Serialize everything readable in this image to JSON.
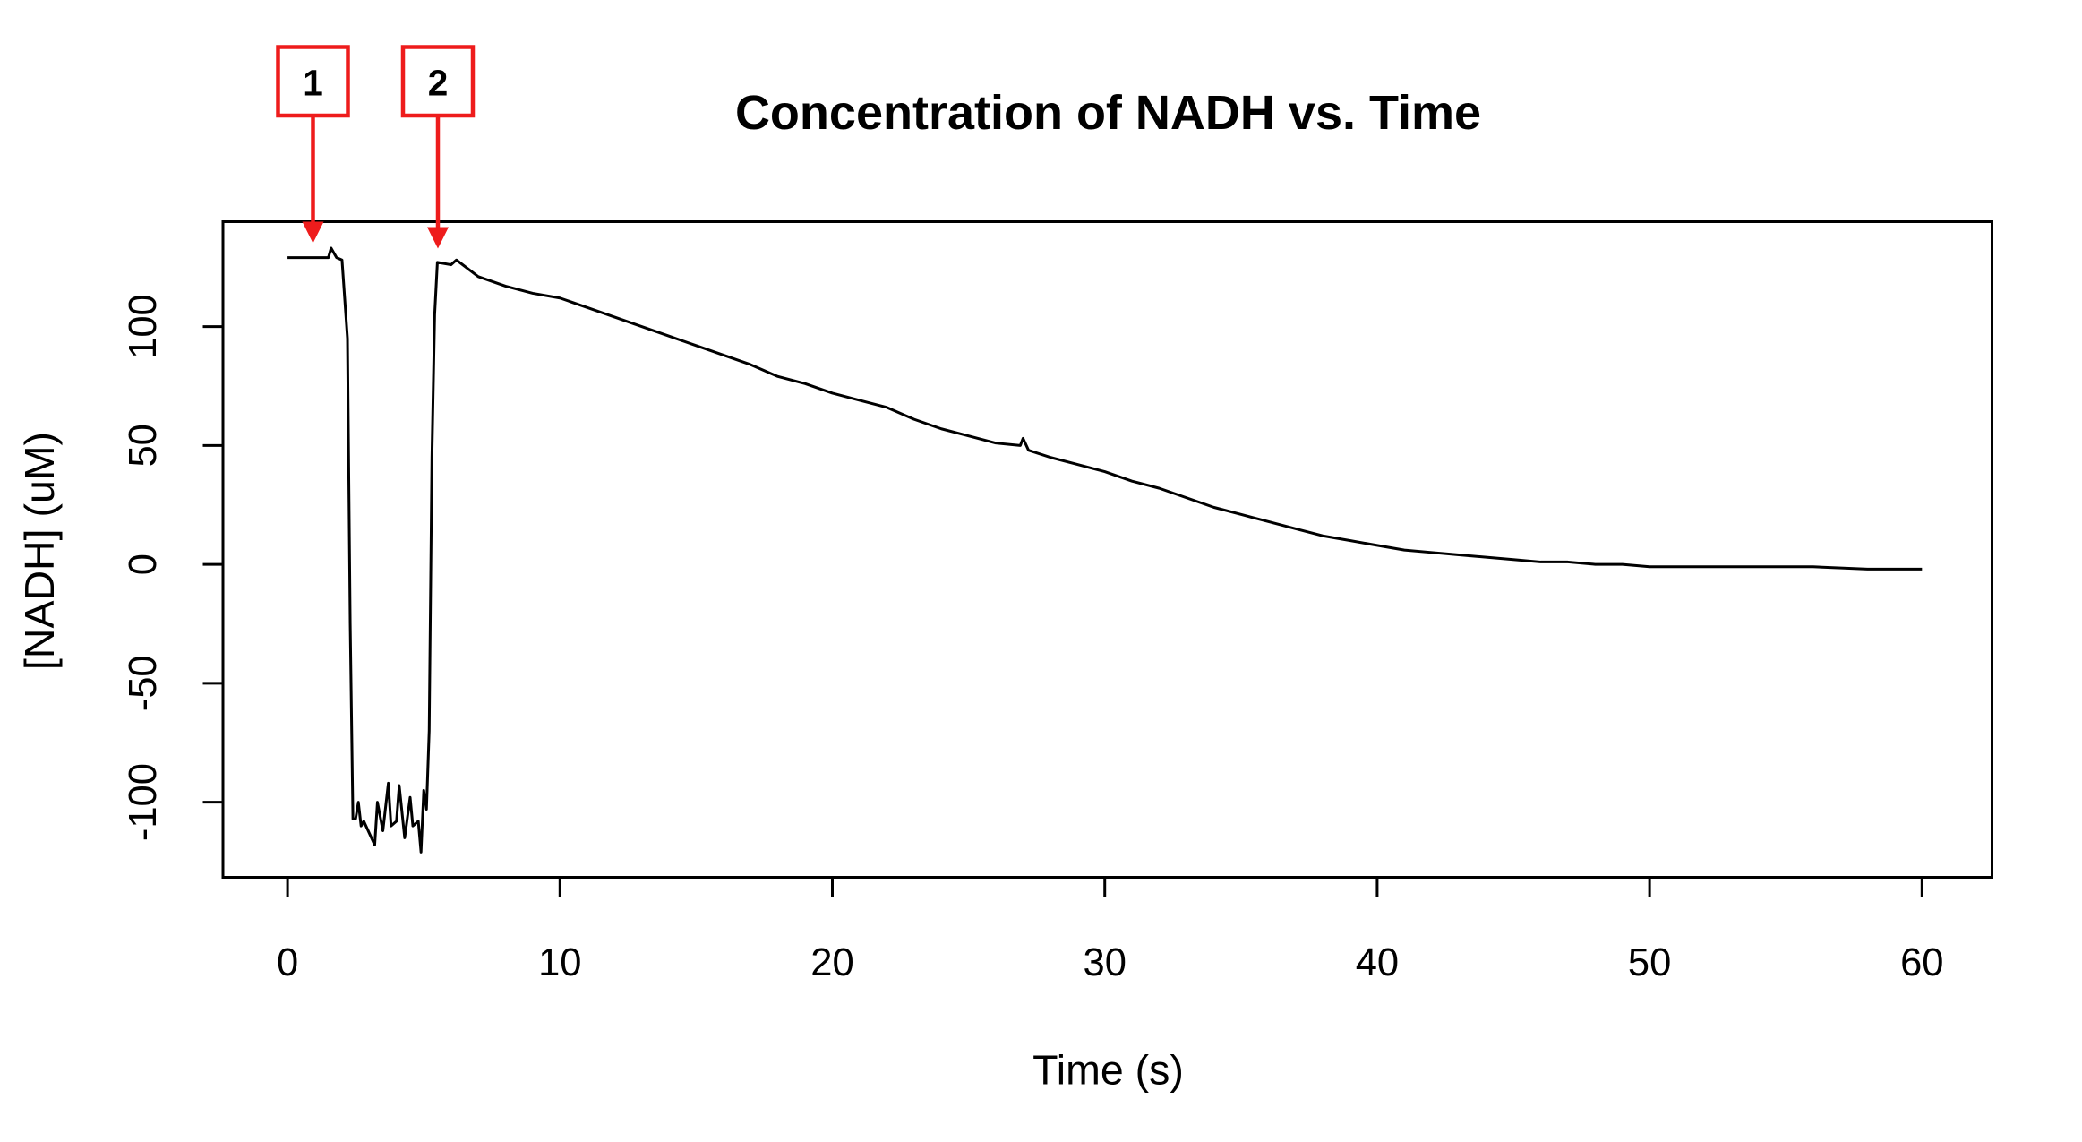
{
  "chart_data": {
    "type": "line",
    "title": "Concentration of NADH vs. Time",
    "x_label": "Time (s)",
    "y_label": "[NADH] (uM)",
    "annotations": [
      "1",
      "2"
    ],
    "x": [
      0,
      0.5,
      1,
      1.5,
      1.6,
      1.8,
      2,
      2.2,
      2.3,
      2.4,
      2.5,
      2.6,
      2.7,
      2.8,
      3,
      3.2,
      3.3,
      3.5,
      3.7,
      3.8,
      4,
      4.1,
      4.3,
      4.5,
      4.6,
      4.8,
      4.9,
      5,
      5.1,
      5.2,
      5.3,
      5.4,
      5.5,
      6,
      6.2,
      7,
      8,
      9,
      10,
      11,
      12,
      13,
      14,
      15,
      16,
      17,
      18,
      19,
      20,
      21,
      22,
      23,
      24,
      25,
      26,
      26.9,
      27,
      27.2,
      28,
      29,
      30,
      31,
      32,
      33,
      34,
      35,
      36,
      37,
      38,
      39,
      40,
      41,
      42,
      43,
      44,
      45,
      46,
      47,
      48,
      49,
      50,
      52,
      54,
      56,
      58,
      60
    ],
    "series": [
      {
        "name": "NADH",
        "color": "#000000",
        "values": [
          129,
          129,
          129,
          129,
          133,
          129,
          128,
          95,
          -25,
          -107,
          -107,
          -100,
          -110,
          -108,
          -113,
          -118,
          -100,
          -112,
          -92,
          -110,
          -108,
          -93,
          -115,
          -98,
          -110,
          -108,
          -121,
          -95,
          -103,
          -70,
          45,
          105,
          127,
          126,
          128,
          121,
          117,
          114,
          112,
          108,
          104,
          100,
          96,
          92,
          88,
          84,
          79,
          76,
          72,
          69,
          66,
          61,
          57,
          54,
          51,
          50,
          53,
          48,
          45,
          42,
          39,
          35,
          32,
          28,
          24,
          21,
          18,
          15,
          12,
          10,
          8,
          6,
          5,
          4,
          3,
          2,
          1,
          1,
          0,
          0,
          -1,
          -1,
          -1,
          -1,
          -2,
          -2
        ]
      }
    ],
    "xlim": [
      -2.37,
      62.57
    ],
    "ylim": [
      -131.6,
      144.1
    ],
    "xticks": [
      0,
      10,
      20,
      30,
      40,
      50,
      60
    ],
    "yticks": [
      -100,
      -50,
      0,
      50,
      100
    ],
    "grid": false
  }
}
